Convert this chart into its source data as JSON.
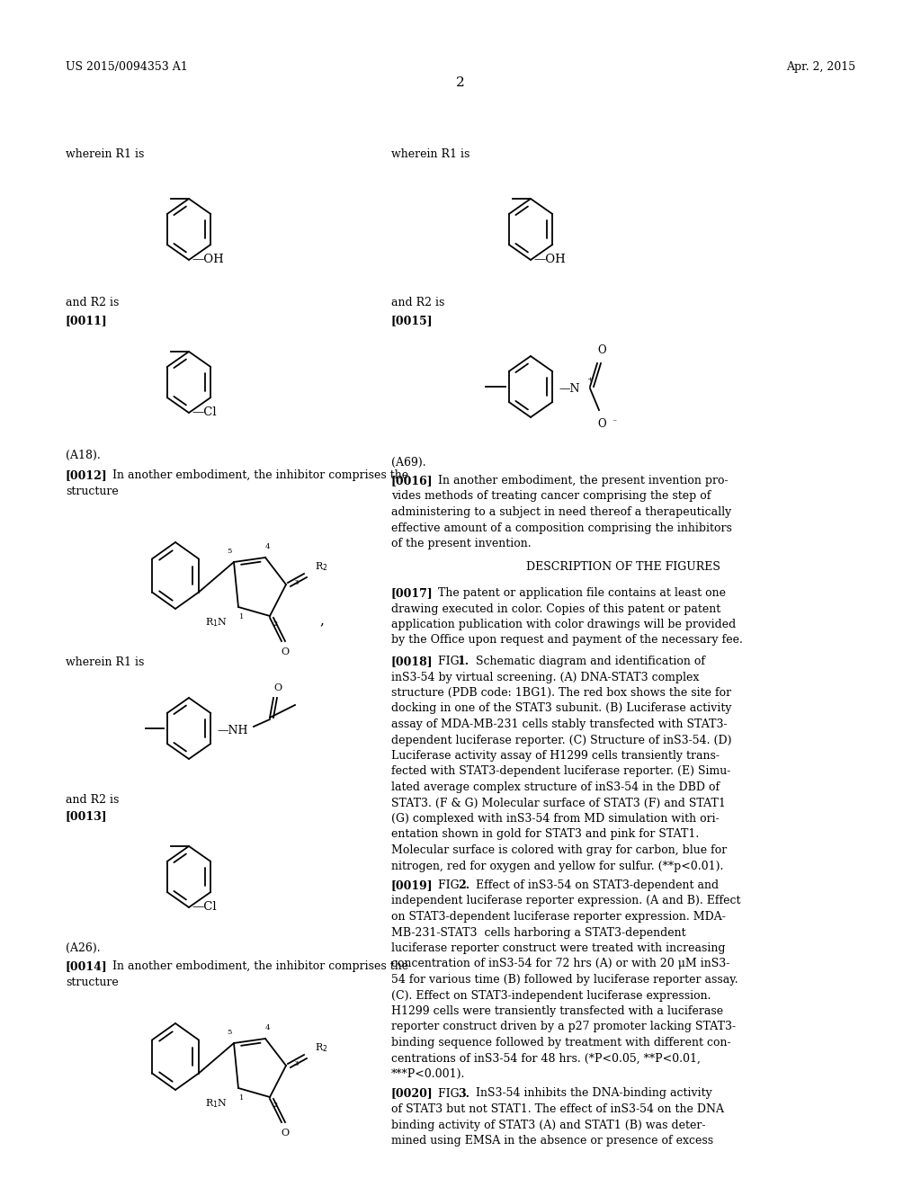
{
  "background_color": "#ffffff",
  "header_left": "US 2015/0094353 A1",
  "header_right": "Apr. 2, 2015",
  "page_number": "2"
}
